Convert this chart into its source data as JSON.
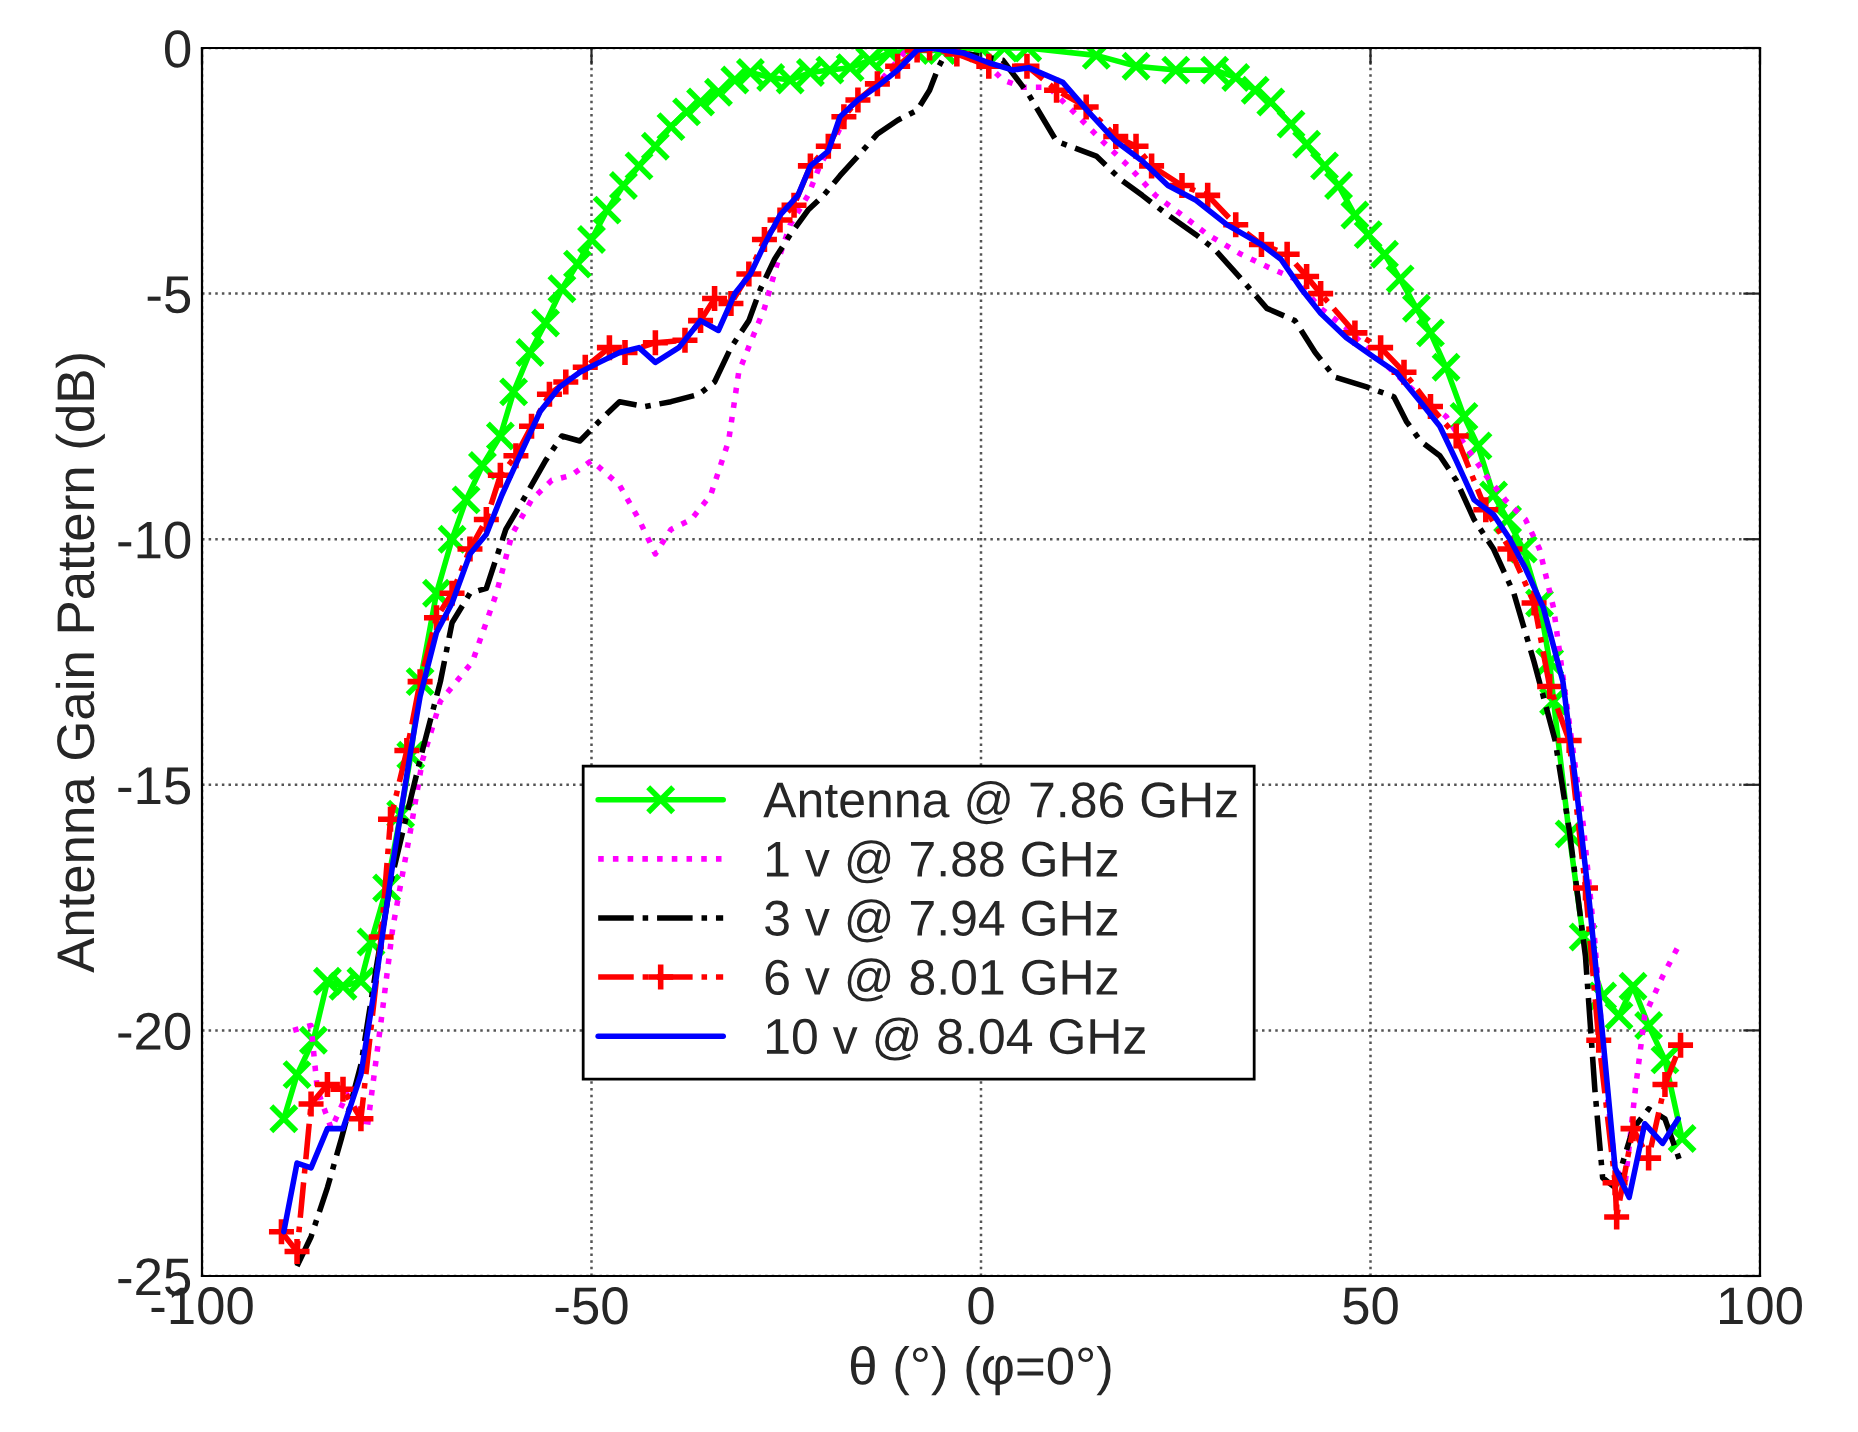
{
  "chart_data": {
    "type": "line",
    "xlabel": "θ (°) (φ=0°)",
    "ylabel": "Antenna Gain Pattern (dB)",
    "xlim": [
      -100,
      100
    ],
    "xticks": [
      -100,
      -50,
      0,
      50,
      100
    ],
    "ylim": [
      -25,
      0
    ],
    "yticks": [
      -25,
      -20,
      -15,
      -10,
      -5,
      0
    ],
    "grid": true,
    "legend": "bottom",
    "series": [
      {
        "name": "Antenna @ 7.86 GHz",
        "color": "#00ff00",
        "marker": "cross",
        "line_style": "solid",
        "x": [
          -89.5,
          -87.8,
          -85.7,
          -83.9,
          -81.9,
          -79.6,
          -78.3,
          -76.3,
          -74.5,
          -73.2,
          -72,
          -69.9,
          -67.9,
          -66.1,
          -64,
          -61.7,
          -60,
          -57.9,
          -55.9,
          -53.8,
          -51.8,
          -50,
          -48,
          -45.9,
          -43.9,
          -41.8,
          -39.8,
          -37.8,
          -36,
          -33.7,
          -31.6,
          -29.6,
          -27,
          -24.5,
          -21.9,
          -19.4,
          -16.8,
          -14.3,
          -11.7,
          -8.5,
          -5,
          0,
          3,
          6,
          14.8,
          19.9,
          25,
          30,
          32.7,
          35.2,
          37.2,
          39.8,
          41.8,
          44.1,
          45.9,
          48,
          49.7,
          51.8,
          53.8,
          55.9,
          57.7,
          59.7,
          62,
          63.8,
          65.8,
          67.6,
          69.6,
          71.7,
          73,
          73.5,
          75.5,
          77.3,
          79.8,
          81.9,
          83.7,
          85.7,
          87.8,
          90
        ],
        "values": [
          -21.8,
          -20.9,
          -20.2,
          -19.0,
          -19.1,
          -19.0,
          -18.2,
          -17.1,
          -15.6,
          -14.4,
          -12.9,
          -11.1,
          -10.0,
          -9.2,
          -8.5,
          -7.9,
          -7.0,
          -6.2,
          -5.6,
          -4.9,
          -4.4,
          -3.9,
          -3.3,
          -2.8,
          -2.4,
          -2.0,
          -1.6,
          -1.3,
          -1.1,
          -0.9,
          -0.65,
          -0.5,
          -0.6,
          -0.65,
          -0.5,
          -0.45,
          -0.4,
          -0.25,
          -0.1,
          -0.05,
          -0.05,
          0,
          0,
          0,
          -0.15,
          -0.37,
          -0.45,
          -0.45,
          -0.6,
          -0.86,
          -1.1,
          -1.55,
          -1.96,
          -2.4,
          -2.8,
          -3.4,
          -3.8,
          -4.2,
          -4.7,
          -5.3,
          -5.8,
          -6.5,
          -7.5,
          -8.1,
          -9.1,
          -9.6,
          -10.2,
          -11.3,
          -12.5,
          -13.3,
          -16.0,
          -18.1,
          -19.3,
          -19.7,
          -19.1,
          -19.9,
          -20.6,
          -22.2
        ]
      },
      {
        "name": "1 v @ 7.88 GHz",
        "color": "#ff00ff",
        "marker": "none",
        "line_style": "dotted",
        "x": [
          -88.3,
          -86,
          -85.2,
          -83.4,
          -81.4,
          -78.8,
          -77,
          -75.5,
          -73.2,
          -71.7,
          -69.4,
          -65.3,
          -62.2,
          -60.2,
          -57.7,
          -55.1,
          -52.6,
          -50,
          -46.4,
          -43.9,
          -41.8,
          -39.8,
          -37.2,
          -34.7,
          -32.4,
          -31.1,
          -29.6,
          -27.8,
          -26,
          -24.5,
          -22.2,
          -20.7,
          -18.9,
          -16.8,
          -13.3,
          -9.9,
          -6.8,
          0.3,
          2.8,
          5.4,
          8.7,
          12.2,
          15.6,
          18.9,
          22.4,
          25.8,
          29.1,
          33.4,
          36.7,
          40.3,
          43.6,
          46.9,
          49.5,
          53,
          56.4,
          59.7,
          62.2,
          64.8,
          67.3,
          69.9,
          71.7,
          73.5,
          74.7,
          77.3,
          78.8,
          80.1,
          81.4,
          82.7,
          84,
          85.2,
          87.5,
          89.8
        ],
        "values": [
          -20.0,
          -19.9,
          -21.2,
          -22.0,
          -21.3,
          -22.0,
          -19.8,
          -17.9,
          -15.9,
          -14.5,
          -13.3,
          -12.5,
          -11.1,
          -9.9,
          -9.2,
          -8.8,
          -8.7,
          -8.4,
          -8.9,
          -9.6,
          -10.3,
          -9.8,
          -9.6,
          -9.1,
          -8.0,
          -6.6,
          -6.0,
          -5.3,
          -4.3,
          -3.6,
          -3.0,
          -2.4,
          -1.9,
          -1.2,
          -0.75,
          -0.1,
          0,
          -0.25,
          -0.65,
          -0.8,
          -0.8,
          -1.35,
          -1.9,
          -2.4,
          -3.0,
          -3.4,
          -3.8,
          -4.2,
          -4.45,
          -4.7,
          -5.3,
          -5.7,
          -6.1,
          -6.6,
          -7.1,
          -7.5,
          -8.1,
          -8.7,
          -9.2,
          -9.6,
          -10.2,
          -11.4,
          -12.8,
          -15.8,
          -18.2,
          -20.9,
          -22.8,
          -23.1,
          -21.2,
          -19.7,
          -18.9,
          -18.2
        ]
      },
      {
        "name": "3 v @ 7.94 GHz",
        "color": "#000000",
        "marker": "none",
        "line_style": "dashdot",
        "x": [
          -87.8,
          -86,
          -83.9,
          -82.1,
          -79.6,
          -77.6,
          -75.8,
          -73.7,
          -71.7,
          -69.4,
          -67.9,
          -65.6,
          -63.5,
          -61,
          -58.4,
          -55.9,
          -53.8,
          -51.5,
          -49,
          -46.4,
          -43.1,
          -39.8,
          -36.2,
          -34.2,
          -32.1,
          -29.8,
          -28.3,
          -26.5,
          -24.5,
          -22.2,
          -20.2,
          -18.1,
          -15.8,
          -13.3,
          -10.7,
          -8.2,
          -6.6,
          -5.4,
          -4.3,
          -2.3,
          2.8,
          6.1,
          9.7,
          14.8,
          18.1,
          20.7,
          24,
          27.6,
          30,
          33.4,
          36.7,
          40.3,
          42.9,
          45.4,
          49.5,
          53,
          54.6,
          56.4,
          58.9,
          61,
          63.3,
          65.8,
          68.4,
          71,
          73.7,
          75.5,
          77.6,
          78.8,
          79.8,
          81.4,
          83.7,
          85.7,
          87.8,
          89.8
        ],
        "values": [
          -24.8,
          -24.2,
          -23.2,
          -22.2,
          -20.7,
          -18.7,
          -17.0,
          -15.6,
          -14.3,
          -12.9,
          -11.7,
          -11.1,
          -11.0,
          -9.8,
          -9.1,
          -8.4,
          -7.9,
          -8.0,
          -7.6,
          -7.2,
          -7.3,
          -7.2,
          -7.05,
          -6.8,
          -6.1,
          -5.55,
          -4.9,
          -4.3,
          -3.8,
          -3.3,
          -3.0,
          -2.6,
          -2.2,
          -1.75,
          -1.47,
          -1.27,
          -0.86,
          -0.37,
          -0.04,
          -0.1,
          -0.25,
          -0.94,
          -1.9,
          -2.2,
          -2.7,
          -3.0,
          -3.4,
          -3.8,
          -4.1,
          -4.7,
          -5.3,
          -5.55,
          -6.2,
          -6.7,
          -6.9,
          -7.1,
          -7.6,
          -8.0,
          -8.3,
          -8.8,
          -9.6,
          -10.2,
          -11.1,
          -12.5,
          -14.1,
          -15.9,
          -18.5,
          -21.2,
          -23.0,
          -23.2,
          -22.0,
          -21.6,
          -21.8,
          -22.7
        ]
      },
      {
        "name": "6 v @ 8.01 GHz",
        "color": "#ff0000",
        "marker": "plus",
        "line_style": "dashdot",
        "x": [
          -89.8,
          -87.8,
          -86,
          -83.9,
          -81.9,
          -79.6,
          -77,
          -75.8,
          -73.7,
          -72,
          -69.9,
          -67.9,
          -65.6,
          -63.5,
          -61.7,
          -59.7,
          -57.7,
          -55.4,
          -53.3,
          -50.8,
          -47.7,
          -45.7,
          -41.8,
          -38,
          -36,
          -34.2,
          -32.1,
          -29.8,
          -27.8,
          -25.8,
          -24,
          -21.9,
          -19.6,
          -17.6,
          -15.8,
          -13.3,
          -10.7,
          -8.2,
          -6.6,
          -3.1,
          1,
          5.9,
          9.7,
          13.5,
          17.3,
          19.9,
          21.9,
          25.8,
          29.1,
          32.7,
          36,
          39.3,
          41.8,
          43.6,
          48,
          51.3,
          54.3,
          57.7,
          61,
          64.8,
          67.9,
          71,
          73,
          75.5,
          77.6,
          79.3,
          81.4,
          81.6,
          83.7,
          85.7,
          87.8,
          89.8
        ],
        "values": [
          -24.1,
          -24.5,
          -21.5,
          -21.1,
          -21.2,
          -21.8,
          -18.1,
          -15.7,
          -14.3,
          -12.9,
          -11.6,
          -11.1,
          -10.2,
          -9.6,
          -8.7,
          -8.3,
          -7.7,
          -7.05,
          -6.8,
          -6.5,
          -6.1,
          -6.2,
          -6.0,
          -5.95,
          -5.55,
          -5.1,
          -5.2,
          -4.6,
          -3.9,
          -3.5,
          -3.2,
          -2.4,
          -2.0,
          -1.4,
          -1.06,
          -0.73,
          -0.37,
          -0.04,
          0,
          -0.12,
          -0.37,
          -0.37,
          -0.86,
          -1.2,
          -1.8,
          -2.0,
          -2.4,
          -2.8,
          -3.0,
          -3.6,
          -4.0,
          -4.2,
          -4.65,
          -5.0,
          -5.8,
          -6.1,
          -6.6,
          -7.3,
          -7.9,
          -9.4,
          -10.2,
          -11.3,
          -13.0,
          -14.1,
          -17.1,
          -20.2,
          -23.1,
          -23.8,
          -22.0,
          -22.6,
          -21.1,
          -20.3
        ]
      },
      {
        "name": "10 v @ 8.04 GHz",
        "color": "#0000ff",
        "marker": "none",
        "line_style": "solid",
        "x": [
          -89.5,
          -87.8,
          -86,
          -83.9,
          -81.9,
          -79.6,
          -77.6,
          -75.5,
          -73.2,
          -72,
          -69.9,
          -67.9,
          -65.6,
          -63.5,
          -61.5,
          -59.2,
          -56.6,
          -54.1,
          -51.5,
          -49,
          -46.4,
          -43.9,
          -41.8,
          -38.8,
          -36,
          -33.7,
          -31.6,
          -29.6,
          -27.8,
          -25.8,
          -23.5,
          -21.9,
          -19.6,
          -18.1,
          -15.8,
          -13.3,
          -10.7,
          -8.2,
          -6.5,
          -2.3,
          1,
          4.1,
          6.1,
          10.5,
          13.8,
          17.3,
          20.7,
          24,
          27.6,
          31.6,
          36,
          38.5,
          41.1,
          43.6,
          46.9,
          50.5,
          53.3,
          56.4,
          58.9,
          61,
          63.3,
          65.8,
          67.9,
          69.9,
          72.2,
          74.7,
          76.3,
          78.1,
          79.8,
          81.4,
          83.2,
          85.2,
          87.5,
          89.5
        ],
        "values": [
          -24.1,
          -22.7,
          -22.8,
          -22.0,
          -22.0,
          -20.9,
          -18.9,
          -16.6,
          -14.3,
          -13.2,
          -11.9,
          -11.3,
          -10.3,
          -9.9,
          -9.1,
          -8.3,
          -7.4,
          -6.9,
          -6.6,
          -6.4,
          -6.2,
          -6.1,
          -6.4,
          -6.1,
          -5.55,
          -5.75,
          -5.0,
          -4.6,
          -4.0,
          -3.4,
          -3.0,
          -2.4,
          -2.1,
          -1.4,
          -1.06,
          -0.78,
          -0.45,
          -0.04,
          0,
          -0.1,
          -0.3,
          -0.45,
          -0.4,
          -0.7,
          -1.3,
          -1.9,
          -2.3,
          -2.8,
          -3.1,
          -3.6,
          -4.0,
          -4.3,
          -4.9,
          -5.4,
          -5.9,
          -6.3,
          -6.6,
          -7.2,
          -7.7,
          -8.4,
          -9.2,
          -9.5,
          -10.0,
          -10.6,
          -11.4,
          -12.9,
          -14.9,
          -17.4,
          -20.1,
          -22.8,
          -23.4,
          -21.9,
          -22.3,
          -21.8
        ]
      }
    ]
  }
}
